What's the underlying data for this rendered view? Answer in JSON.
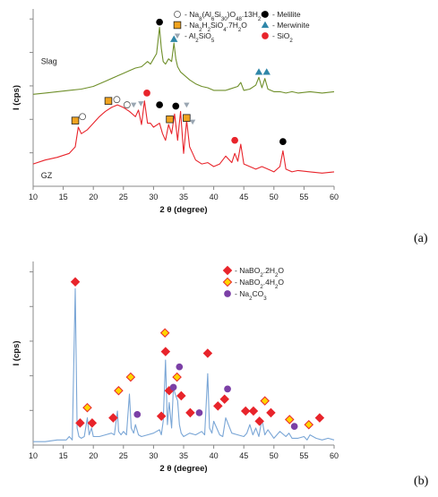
{
  "chart_data": [
    {
      "panel_label": "(a)",
      "type": "line",
      "xlabel": "2 θ (degree)",
      "ylabel": "I (cps)",
      "xlim": [
        10,
        60
      ],
      "xticks": [
        10,
        15,
        20,
        25,
        30,
        35,
        40,
        45,
        50,
        55,
        60
      ],
      "grid": false,
      "series": [
        {
          "name": "Slag",
          "color": "#6f8f2a",
          "x": [
            10,
            12,
            14,
            16,
            18,
            20,
            22,
            24,
            25,
            26,
            27,
            28,
            29,
            29.5,
            30,
            30.5,
            31,
            31.3,
            31.6,
            32,
            32.5,
            33,
            33.4,
            33.7,
            34,
            34.5,
            35,
            36,
            37,
            38,
            39,
            40,
            42,
            44,
            44.5,
            45,
            46,
            47,
            47.5,
            48,
            48.5,
            49,
            50,
            51,
            52,
            53,
            54,
            56,
            58,
            60
          ],
          "y": [
            0.35,
            0.36,
            0.37,
            0.38,
            0.39,
            0.41,
            0.45,
            0.49,
            0.51,
            0.53,
            0.55,
            0.56,
            0.6,
            0.58,
            0.62,
            0.66,
            0.86,
            0.7,
            0.6,
            0.58,
            0.62,
            0.6,
            0.74,
            0.62,
            0.56,
            0.52,
            0.5,
            0.46,
            0.43,
            0.41,
            0.4,
            0.38,
            0.38,
            0.41,
            0.44,
            0.38,
            0.39,
            0.42,
            0.48,
            0.4,
            0.47,
            0.39,
            0.37,
            0.37,
            0.36,
            0.37,
            0.36,
            0.37,
            0.36,
            0.37
          ]
        },
        {
          "name": "GZ",
          "color": "#e8242b",
          "x": [
            10,
            12,
            14,
            16,
            17,
            17.5,
            18,
            19,
            20,
            21,
            22,
            23,
            24,
            25,
            26,
            27,
            27.5,
            28,
            28.5,
            29,
            29.5,
            30,
            31,
            31.5,
            32,
            32.5,
            33,
            33.5,
            34,
            34.5,
            35,
            35.5,
            36,
            36.5,
            37,
            38,
            39,
            40,
            41,
            42,
            43,
            43.5,
            44,
            44.5,
            45,
            46,
            47,
            48,
            49,
            50,
            51,
            51.5,
            52,
            53,
            54,
            56,
            58,
            60
          ],
          "y": [
            -0.18,
            -0.15,
            -0.13,
            -0.1,
            -0.05,
            0.1,
            0.05,
            0.08,
            0.13,
            0.18,
            0.22,
            0.25,
            0.27,
            0.25,
            0.22,
            0.18,
            0.23,
            0.12,
            0.3,
            0.13,
            0.13,
            0.1,
            0.13,
            0.05,
            0.0,
            0.12,
            0.05,
            0.2,
            0.0,
            0.22,
            -0.1,
            0.15,
            -0.05,
            -0.1,
            -0.15,
            -0.18,
            -0.17,
            -0.2,
            -0.18,
            -0.12,
            -0.17,
            -0.1,
            -0.16,
            -0.03,
            -0.18,
            -0.2,
            -0.22,
            -0.2,
            -0.22,
            -0.24,
            -0.2,
            -0.08,
            -0.22,
            -0.24,
            -0.23,
            -0.24,
            -0.25,
            -0.24
          ]
        }
      ],
      "series_labels": [
        "Slag",
        "GZ"
      ],
      "legend": [
        {
          "label": "- Na8(Al6Si30)O48.13H2O",
          "marker": "open-circle",
          "color": "#ffffff"
        },
        {
          "label": "- Melilite",
          "marker": "circle",
          "color": "#000000"
        },
        {
          "label": "- Na2H2SiO4.7H2O",
          "marker": "square",
          "color": "#f0a31f"
        },
        {
          "label": "- Merwinite",
          "marker": "triangle",
          "color": "#2e86a8"
        },
        {
          "label": "- Al2SiO5",
          "marker": "triangle-down",
          "color": "#9aa6b2"
        },
        {
          "label": "- SiO2",
          "marker": "circle",
          "color": "#e8242b"
        }
      ],
      "annotations": [
        {
          "marker": "circle",
          "color": "#000000",
          "x": 31,
          "y": 0.9
        },
        {
          "marker": "triangle",
          "color": "#2e86a8",
          "x": 33.4,
          "y": 0.77
        },
        {
          "marker": "triangle",
          "color": "#2e86a8",
          "x": 47.5,
          "y": 0.52
        },
        {
          "marker": "triangle",
          "color": "#2e86a8",
          "x": 48.8,
          "y": 0.52
        },
        {
          "marker": "square",
          "color": "#f0a31f",
          "x": 17,
          "y": 0.15
        },
        {
          "marker": "open-circle",
          "color": "#ffffff",
          "x": 18.2,
          "y": 0.18
        },
        {
          "marker": "square",
          "color": "#f0a31f",
          "x": 22.5,
          "y": 0.3
        },
        {
          "marker": "open-circle",
          "color": "#ffffff",
          "x": 23.9,
          "y": 0.31
        },
        {
          "marker": "open-circle",
          "color": "#ffffff",
          "x": 25.6,
          "y": 0.27
        },
        {
          "marker": "triangle-down",
          "color": "#9aa6b2",
          "x": 26.7,
          "y": 0.27
        },
        {
          "marker": "triangle-down",
          "color": "#9aa6b2",
          "x": 27.9,
          "y": 0.28
        },
        {
          "marker": "circle",
          "color": "#e8242b",
          "x": 28.9,
          "y": 0.36
        },
        {
          "marker": "circle",
          "color": "#000000",
          "x": 31,
          "y": 0.27
        },
        {
          "marker": "square",
          "color": "#f0a31f",
          "x": 32.7,
          "y": 0.16
        },
        {
          "marker": "circle",
          "color": "#000000",
          "x": 33.7,
          "y": 0.26
        },
        {
          "marker": "triangle-down",
          "color": "#9aa6b2",
          "x": 35.5,
          "y": 0.27
        },
        {
          "marker": "square",
          "color": "#f0a31f",
          "x": 35.5,
          "y": 0.17
        },
        {
          "marker": "triangle-down",
          "color": "#9aa6b2",
          "x": 36.5,
          "y": 0.14
        },
        {
          "marker": "circle",
          "color": "#e8242b",
          "x": 43.5,
          "y": 0.0
        },
        {
          "marker": "circle",
          "color": "#000000",
          "x": 51.5,
          "y": -0.01
        }
      ],
      "ylim": [
        -0.35,
        1.0
      ]
    },
    {
      "panel_label": "(b)",
      "type": "line",
      "xlabel": "2 θ (degree)",
      "ylabel": "I (cps)",
      "xlim": [
        10,
        60
      ],
      "xticks": [
        10,
        15,
        20,
        25,
        30,
        35,
        40,
        45,
        50,
        55,
        60
      ],
      "grid": false,
      "series": [
        {
          "name": "",
          "color": "#7aa6d6",
          "x": [
            10,
            12,
            14,
            15.5,
            16,
            16.5,
            17,
            17.3,
            17.6,
            18,
            18.5,
            19,
            19.3,
            19.7,
            20,
            21,
            22,
            23,
            23.5,
            24,
            24.2,
            24.6,
            25,
            25.5,
            26,
            26.3,
            26.7,
            27,
            27.5,
            28,
            29,
            30,
            31,
            31.3,
            31.6,
            32,
            32.3,
            32.6,
            33,
            33.3,
            33.6,
            34,
            34.3,
            34.6,
            35,
            36,
            37,
            38,
            38.5,
            39,
            39.3,
            39.7,
            40,
            41,
            41.5,
            42,
            43,
            44,
            45,
            45.5,
            46,
            46.5,
            47,
            47.5,
            48,
            48.5,
            49,
            50,
            51,
            52,
            52.5,
            53,
            54,
            55,
            55.5,
            56,
            57,
            58,
            59,
            60
          ],
          "y": [
            0.02,
            0.02,
            0.03,
            0.03,
            0.05,
            0.03,
            0.92,
            0.1,
            0.05,
            0.04,
            0.05,
            0.16,
            0.06,
            0.1,
            0.05,
            0.05,
            0.06,
            0.07,
            0.06,
            0.2,
            0.08,
            0.06,
            0.08,
            0.06,
            0.3,
            0.1,
            0.07,
            0.12,
            0.06,
            0.05,
            0.06,
            0.07,
            0.09,
            0.06,
            0.14,
            0.5,
            0.12,
            0.25,
            0.1,
            0.34,
            0.3,
            0.26,
            0.12,
            0.07,
            0.05,
            0.07,
            0.06,
            0.08,
            0.06,
            0.42,
            0.1,
            0.07,
            0.14,
            0.06,
            0.05,
            0.16,
            0.07,
            0.06,
            0.05,
            0.07,
            0.12,
            0.06,
            0.1,
            0.05,
            0.15,
            0.06,
            0.09,
            0.04,
            0.08,
            0.05,
            0.07,
            0.04,
            0.04,
            0.05,
            0.03,
            0.06,
            0.04,
            0.03,
            0.04,
            0.03
          ]
        }
      ],
      "legend": [
        {
          "label": "- NaBO2.2H2O",
          "marker": "diamond",
          "color": "#e8242b"
        },
        {
          "label": "- NaBO2.4H2O",
          "marker": "diamond",
          "color": "#ffd400"
        },
        {
          "label": "- Na2CO3",
          "marker": "circle",
          "color": "#7b3fa6"
        }
      ],
      "annotations": [
        {
          "marker": "diamond",
          "color": "#e8242b",
          "x": 17,
          "y": 0.96
        },
        {
          "marker": "diamond",
          "color": "#e8242b",
          "x": 17.8,
          "y": 0.13
        },
        {
          "marker": "diamond",
          "color": "#ffd400",
          "x": 19,
          "y": 0.22
        },
        {
          "marker": "diamond",
          "color": "#e8242b",
          "x": 19.8,
          "y": 0.13
        },
        {
          "marker": "diamond",
          "color": "#e8242b",
          "x": 23.3,
          "y": 0.16
        },
        {
          "marker": "diamond",
          "color": "#ffd400",
          "x": 24.2,
          "y": 0.32
        },
        {
          "marker": "diamond",
          "color": "#ffd400",
          "x": 26.2,
          "y": 0.4
        },
        {
          "marker": "circle",
          "color": "#7b3fa6",
          "x": 27.3,
          "y": 0.18
        },
        {
          "marker": "diamond",
          "color": "#e8242b",
          "x": 31.3,
          "y": 0.17
        },
        {
          "marker": "diamond",
          "color": "#ffd400",
          "x": 31.9,
          "y": 0.66
        },
        {
          "marker": "diamond",
          "color": "#e8242b",
          "x": 32,
          "y": 0.55
        },
        {
          "marker": "diamond",
          "color": "#e8242b",
          "x": 32.6,
          "y": 0.32
        },
        {
          "marker": "circle",
          "color": "#7b3fa6",
          "x": 33.3,
          "y": 0.34
        },
        {
          "marker": "diamond",
          "color": "#ffd400",
          "x": 33.9,
          "y": 0.4
        },
        {
          "marker": "circle",
          "color": "#7b3fa6",
          "x": 34.3,
          "y": 0.46
        },
        {
          "marker": "diamond",
          "color": "#e8242b",
          "x": 34.6,
          "y": 0.29
        },
        {
          "marker": "diamond",
          "color": "#e8242b",
          "x": 36.1,
          "y": 0.19
        },
        {
          "marker": "circle",
          "color": "#7b3fa6",
          "x": 37.6,
          "y": 0.19
        },
        {
          "marker": "diamond",
          "color": "#e8242b",
          "x": 39,
          "y": 0.54
        },
        {
          "marker": "diamond",
          "color": "#e8242b",
          "x": 40.7,
          "y": 0.23
        },
        {
          "marker": "diamond",
          "color": "#e8242b",
          "x": 41.8,
          "y": 0.27
        },
        {
          "marker": "circle",
          "color": "#7b3fa6",
          "x": 42.3,
          "y": 0.33
        },
        {
          "marker": "diamond",
          "color": "#e8242b",
          "x": 45.3,
          "y": 0.2
        },
        {
          "marker": "diamond",
          "color": "#e8242b",
          "x": 46.6,
          "y": 0.2
        },
        {
          "marker": "diamond",
          "color": "#ffd400",
          "x": 48.5,
          "y": 0.26
        },
        {
          "marker": "diamond",
          "color": "#e8242b",
          "x": 47.6,
          "y": 0.14
        },
        {
          "marker": "diamond",
          "color": "#e8242b",
          "x": 49.5,
          "y": 0.19
        },
        {
          "marker": "diamond",
          "color": "#ffd400",
          "x": 52.6,
          "y": 0.15
        },
        {
          "marker": "circle",
          "color": "#7b3fa6",
          "x": 53.4,
          "y": 0.11
        },
        {
          "marker": "diamond",
          "color": "#ffd400",
          "x": 55.8,
          "y": 0.12
        },
        {
          "marker": "diamond",
          "color": "#e8242b",
          "x": 57.6,
          "y": 0.16
        }
      ],
      "ylim": [
        0,
        1.08
      ]
    }
  ]
}
